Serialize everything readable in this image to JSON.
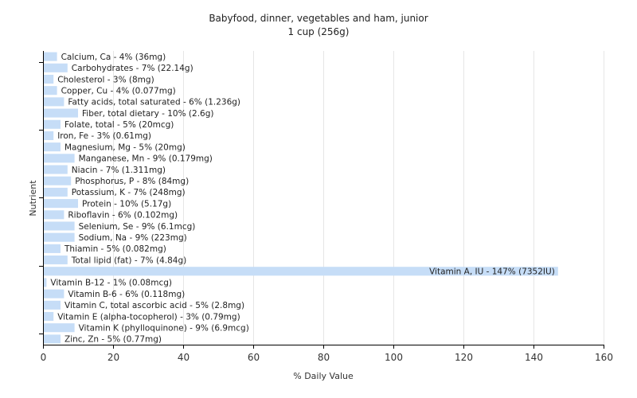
{
  "chart_data": {
    "type": "bar",
    "orientation": "horizontal",
    "title": "Babyfood, dinner, vegetables and ham, junior",
    "subtitle": "1 cup (256g)",
    "xlabel": "% Daily Value",
    "ylabel": "Nutrient",
    "xlim": [
      0,
      160
    ],
    "xticks": [
      0,
      20,
      40,
      60,
      80,
      100,
      120,
      140,
      160
    ],
    "grid": "vertical",
    "bar_color": "#c6ddf7",
    "categories": [
      "Calcium, Ca - 4% (36mg)",
      "Carbohydrates - 7% (22.14g)",
      "Cholesterol - 3% (8mg)",
      "Copper, Cu - 4% (0.077mg)",
      "Fatty acids, total saturated - 6% (1.236g)",
      "Fiber, total dietary - 10% (2.6g)",
      "Folate, total - 5% (20mcg)",
      "Iron, Fe - 3% (0.61mg)",
      "Magnesium, Mg - 5% (20mg)",
      "Manganese, Mn - 9% (0.179mg)",
      "Niacin - 7% (1.311mg)",
      "Phosphorus, P - 8% (84mg)",
      "Potassium, K - 7% (248mg)",
      "Protein - 10% (5.17g)",
      "Riboflavin - 6% (0.102mg)",
      "Selenium, Se - 9% (6.1mcg)",
      "Sodium, Na - 9% (223mg)",
      "Thiamin - 5% (0.082mg)",
      "Total lipid (fat) - 7% (4.84g)",
      "Vitamin A, IU - 147% (7352IU)",
      "Vitamin B-12 - 1% (0.08mcg)",
      "Vitamin B-6 - 6% (0.118mg)",
      "Vitamin C, total ascorbic acid - 5% (2.8mg)",
      "Vitamin E (alpha-tocopherol) - 3% (0.79mg)",
      "Vitamin K (phylloquinone) - 9% (6.9mcg)",
      "Zinc, Zn - 5% (0.77mg)"
    ],
    "values": [
      4,
      7,
      3,
      4,
      6,
      10,
      5,
      3,
      5,
      9,
      7,
      8,
      7,
      10,
      6,
      9,
      9,
      5,
      7,
      147,
      1,
      6,
      5,
      3,
      9,
      5
    ]
  }
}
